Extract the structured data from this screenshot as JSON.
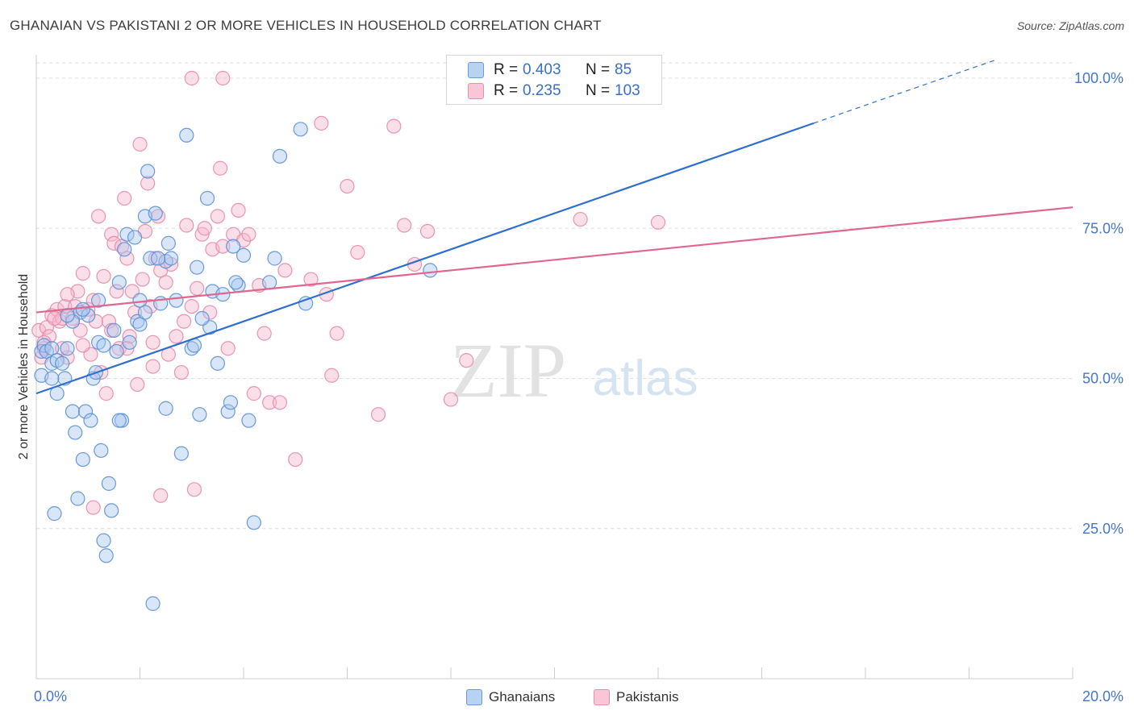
{
  "title": "GHANAIAN VS PAKISTANI 2 OR MORE VEHICLES IN HOUSEHOLD CORRELATION CHART",
  "source": "Source: ZipAtlas.com",
  "watermark": {
    "zip": "ZIP",
    "atlas": "atlas"
  },
  "colors": {
    "blue_fill": "#a8c8f0",
    "blue_stroke": "#5b8fd6",
    "blue_line": "#2f6fce",
    "pink_fill": "#f6b8cc",
    "pink_stroke": "#e88aa8",
    "pink_line": "#e0668f",
    "tick_label": "#4477cc",
    "grid": "#dddddd"
  },
  "stats_legend": [
    {
      "r_label": "R =",
      "r_value": "0.403",
      "n_label": "N =",
      "n_value": "85"
    },
    {
      "r_label": "R =",
      "r_value": "0.235",
      "n_label": "N =",
      "n_value": "103"
    }
  ],
  "bottom_legend": [
    "Ghanaians",
    "Pakistanis"
  ],
  "chart_data": {
    "type": "scatter",
    "title": "GHANAIAN VS PAKISTANI 2 OR MORE VEHICLES IN HOUSEHOLD CORRELATION CHART",
    "xlabel": "",
    "ylabel": "2 or more Vehicles in Household",
    "xlim": [
      0,
      20
    ],
    "ylim": [
      0,
      100
    ],
    "x_tick_labels": [
      "0.0%",
      "20.0%"
    ],
    "y_ticks": [
      25,
      50,
      75,
      100
    ],
    "y_tick_labels": [
      "25.0%",
      "50.0%",
      "75.0%",
      "100.0%"
    ],
    "grid": true,
    "series": [
      {
        "name": "Ghanaians",
        "trend": {
          "x0": 0,
          "y0": 47.5,
          "x1": 15,
          "y1": 92.5,
          "dashed_to_x": 18.5,
          "dashed_to_y": 103
        },
        "points": [
          [
            0.1,
            50.5
          ],
          [
            0.1,
            54.5
          ],
          [
            0.15,
            55.5
          ],
          [
            0.2,
            54.5
          ],
          [
            0.3,
            55
          ],
          [
            0.3,
            52.5
          ],
          [
            0.35,
            27.5
          ],
          [
            0.4,
            47.5
          ],
          [
            0.4,
            53
          ],
          [
            0.5,
            52.5
          ],
          [
            0.55,
            50
          ],
          [
            0.6,
            55
          ],
          [
            0.7,
            44.5
          ],
          [
            0.75,
            41
          ],
          [
            0.8,
            30
          ],
          [
            0.85,
            61
          ],
          [
            0.9,
            36.5
          ],
          [
            0.95,
            44.5
          ],
          [
            1.0,
            60.5
          ],
          [
            1.1,
            50
          ],
          [
            1.15,
            51
          ],
          [
            1.2,
            56
          ],
          [
            1.25,
            38
          ],
          [
            1.3,
            23
          ],
          [
            1.35,
            20.5
          ],
          [
            1.4,
            32.5
          ],
          [
            1.45,
            28
          ],
          [
            1.5,
            58
          ],
          [
            1.55,
            54.5
          ],
          [
            1.6,
            66
          ],
          [
            1.7,
            71.5
          ],
          [
            1.75,
            74
          ],
          [
            1.8,
            56
          ],
          [
            1.9,
            73.5
          ],
          [
            1.95,
            59.5
          ],
          [
            2.0,
            63
          ],
          [
            2.1,
            77
          ],
          [
            2.15,
            84.5
          ],
          [
            2.2,
            70
          ],
          [
            2.3,
            77.5
          ],
          [
            2.4,
            62.5
          ],
          [
            2.5,
            45
          ],
          [
            2.5,
            69.5
          ],
          [
            2.6,
            70
          ],
          [
            2.8,
            37.5
          ],
          [
            2.9,
            90.5
          ],
          [
            3.0,
            55
          ],
          [
            3.1,
            68.5
          ],
          [
            3.3,
            80
          ],
          [
            3.35,
            58.5
          ],
          [
            3.4,
            64.5
          ],
          [
            3.5,
            52.5
          ],
          [
            3.6,
            64
          ],
          [
            3.7,
            44.5
          ],
          [
            3.75,
            46
          ],
          [
            3.8,
            72
          ],
          [
            3.9,
            65.5
          ],
          [
            4.0,
            70.5
          ],
          [
            4.1,
            43
          ],
          [
            4.2,
            26
          ],
          [
            4.5,
            66
          ],
          [
            4.6,
            70
          ],
          [
            4.7,
            87
          ],
          [
            5.1,
            91.5
          ],
          [
            5.2,
            62.5
          ],
          [
            7.6,
            68
          ],
          [
            0.7,
            59.5
          ],
          [
            1.05,
            43
          ],
          [
            1.65,
            43
          ],
          [
            2.0,
            59
          ],
          [
            1.2,
            63
          ],
          [
            2.7,
            63
          ],
          [
            0.6,
            60.5
          ],
          [
            1.6,
            43
          ],
          [
            2.25,
            12.5
          ],
          [
            2.55,
            72.5
          ],
          [
            3.2,
            60
          ],
          [
            3.15,
            44
          ],
          [
            3.05,
            55.5
          ],
          [
            2.1,
            61
          ],
          [
            1.3,
            55.5
          ],
          [
            0.9,
            61.5
          ],
          [
            3.85,
            66
          ],
          [
            2.35,
            70
          ],
          [
            0.3,
            50
          ]
        ]
      },
      {
        "name": "Pakistanis",
        "trend": {
          "x0": 0,
          "y0": 61,
          "x1": 20,
          "y1": 78.5
        },
        "points": [
          [
            0.05,
            58
          ],
          [
            0.1,
            53.5
          ],
          [
            0.15,
            55
          ],
          [
            0.2,
            58.5
          ],
          [
            0.25,
            57
          ],
          [
            0.3,
            60.5
          ],
          [
            0.4,
            61.5
          ],
          [
            0.45,
            59.5
          ],
          [
            0.5,
            60
          ],
          [
            0.55,
            62
          ],
          [
            0.6,
            53.5
          ],
          [
            0.7,
            60
          ],
          [
            0.75,
            62
          ],
          [
            0.8,
            64.5
          ],
          [
            0.85,
            58
          ],
          [
            0.9,
            67.5
          ],
          [
            1.0,
            61.5
          ],
          [
            1.05,
            54
          ],
          [
            1.1,
            63
          ],
          [
            1.15,
            59.5
          ],
          [
            1.2,
            77
          ],
          [
            1.3,
            67
          ],
          [
            1.35,
            47.5
          ],
          [
            1.4,
            59.5
          ],
          [
            1.45,
            74
          ],
          [
            1.5,
            72.5
          ],
          [
            1.55,
            64.5
          ],
          [
            1.6,
            55
          ],
          [
            1.65,
            72
          ],
          [
            1.7,
            80
          ],
          [
            1.75,
            70
          ],
          [
            1.8,
            57
          ],
          [
            1.85,
            64.5
          ],
          [
            1.9,
            61
          ],
          [
            1.95,
            49
          ],
          [
            2.0,
            89
          ],
          [
            2.1,
            74.5
          ],
          [
            2.15,
            82.5
          ],
          [
            2.2,
            62
          ],
          [
            2.25,
            56
          ],
          [
            2.3,
            70
          ],
          [
            2.35,
            77
          ],
          [
            2.4,
            68
          ],
          [
            2.5,
            66
          ],
          [
            2.6,
            69
          ],
          [
            2.7,
            57
          ],
          [
            2.8,
            51
          ],
          [
            2.85,
            59.5
          ],
          [
            2.9,
            75.5
          ],
          [
            3.0,
            62
          ],
          [
            3.1,
            65
          ],
          [
            3.2,
            74
          ],
          [
            3.25,
            75
          ],
          [
            3.4,
            71.5
          ],
          [
            3.5,
            77
          ],
          [
            3.55,
            85
          ],
          [
            3.6,
            72
          ],
          [
            3.7,
            55
          ],
          [
            3.8,
            74
          ],
          [
            3.9,
            78
          ],
          [
            4.0,
            73
          ],
          [
            4.1,
            74
          ],
          [
            4.2,
            47.5
          ],
          [
            4.3,
            65.5
          ],
          [
            4.4,
            57.5
          ],
          [
            4.5,
            46
          ],
          [
            4.8,
            68
          ],
          [
            5.0,
            36.5
          ],
          [
            5.3,
            66.5
          ],
          [
            5.5,
            92.5
          ],
          [
            5.6,
            64
          ],
          [
            5.8,
            57.5
          ],
          [
            6.0,
            82
          ],
          [
            6.2,
            71
          ],
          [
            6.6,
            44
          ],
          [
            6.9,
            92
          ],
          [
            7.1,
            75.5
          ],
          [
            7.3,
            69
          ],
          [
            7.55,
            74.5
          ],
          [
            8.0,
            46.5
          ],
          [
            8.3,
            53
          ],
          [
            9.4,
            100
          ],
          [
            10.5,
            76.5
          ],
          [
            12.0,
            76
          ],
          [
            4.7,
            46
          ],
          [
            5.7,
            50.5
          ],
          [
            3.05,
            31.5
          ],
          [
            2.4,
            30.5
          ],
          [
            1.1,
            28.5
          ],
          [
            3.6,
            100
          ],
          [
            3.0,
            100
          ],
          [
            0.6,
            64
          ],
          [
            0.35,
            60
          ],
          [
            1.25,
            51
          ],
          [
            2.05,
            66.5
          ],
          [
            3.35,
            61
          ],
          [
            2.55,
            54
          ],
          [
            0.9,
            55.5
          ],
          [
            1.45,
            58
          ],
          [
            1.75,
            55
          ],
          [
            2.25,
            52
          ],
          [
            0.15,
            56
          ],
          [
            0.5,
            55
          ]
        ]
      }
    ]
  }
}
